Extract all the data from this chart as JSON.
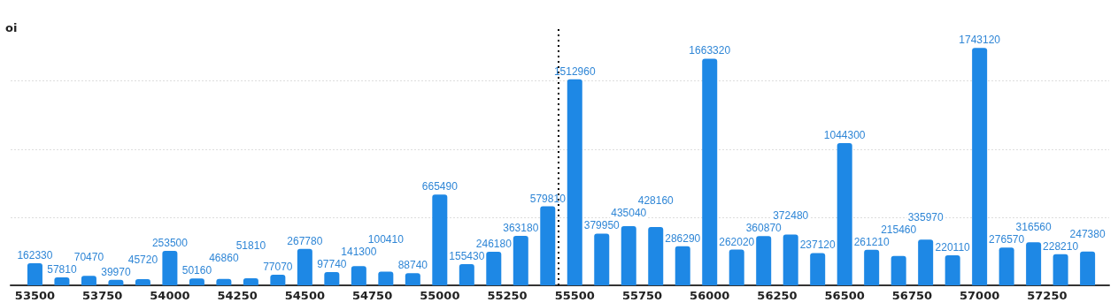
{
  "chart_data": {
    "type": "bar",
    "ylabel": "oi",
    "x": [
      53500,
      53600,
      53700,
      53800,
      53900,
      54000,
      54100,
      54200,
      54300,
      54400,
      54500,
      54600,
      54700,
      54800,
      54900,
      55000,
      55100,
      55200,
      55300,
      55400,
      55500,
      55600,
      55700,
      55800,
      55900,
      56000,
      56100,
      56200,
      56300,
      56400,
      56500,
      56600,
      56700,
      56800,
      56900,
      57000,
      57100,
      57200,
      57300,
      57400
    ],
    "values": [
      162330,
      57810,
      70470,
      39970,
      45720,
      253500,
      50160,
      46860,
      51810,
      77070,
      267780,
      97740,
      141300,
      100410,
      88740,
      665490,
      155430,
      246180,
      363180,
      579810,
      1512960,
      379950,
      435040,
      428160,
      286290,
      1663320,
      262020,
      360870,
      372480,
      237120,
      1044300,
      261210,
      215460,
      335970,
      220110,
      1743120,
      276570,
      316560,
      228210,
      247380
    ],
    "color": "#1e88e5",
    "data_labels": true,
    "xlim": [
      53410,
      57480
    ],
    "xticks": [
      53500,
      53750,
      54000,
      54250,
      54500,
      54750,
      55000,
      55250,
      55500,
      55750,
      56000,
      56250,
      56500,
      56750,
      57000,
      57250
    ],
    "ylim": [
      0,
      1900000
    ],
    "yticks": [
      {
        "value": 0,
        "label": null
      },
      {
        "value": 500000,
        "label": null
      },
      {
        "value": 1000000,
        "label": null
      },
      {
        "value": 1500000,
        "label": null
      }
    ],
    "tick_labels": "x",
    "grid": "y",
    "ref_lines": [
      {
        "axis": "x",
        "value": 55440,
        "label": null,
        "color": "#000000",
        "line_style": "dotted"
      }
    ]
  }
}
